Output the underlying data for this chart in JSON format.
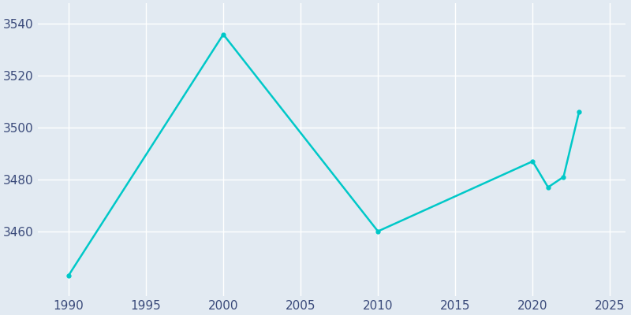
{
  "years": [
    1990,
    2000,
    2010,
    2020,
    2021,
    2022,
    2023
  ],
  "population": [
    3443,
    3536,
    3460,
    3487,
    3477,
    3481,
    3506
  ],
  "line_color": "#00C8C8",
  "marker_color": "#00C8C8",
  "background_color": "#E2EAF2",
  "plot_background_color": "#E2EAF2",
  "grid_color": "#FFFFFF",
  "tick_color": "#3A4A7A",
  "xlim": [
    1988,
    2026
  ],
  "ylim": [
    3435,
    3548
  ],
  "xticks": [
    1990,
    1995,
    2000,
    2005,
    2010,
    2015,
    2020,
    2025
  ],
  "yticks": [
    3460,
    3480,
    3500,
    3520,
    3540
  ],
  "figsize": [
    8.0,
    4.0
  ],
  "dpi": 100
}
